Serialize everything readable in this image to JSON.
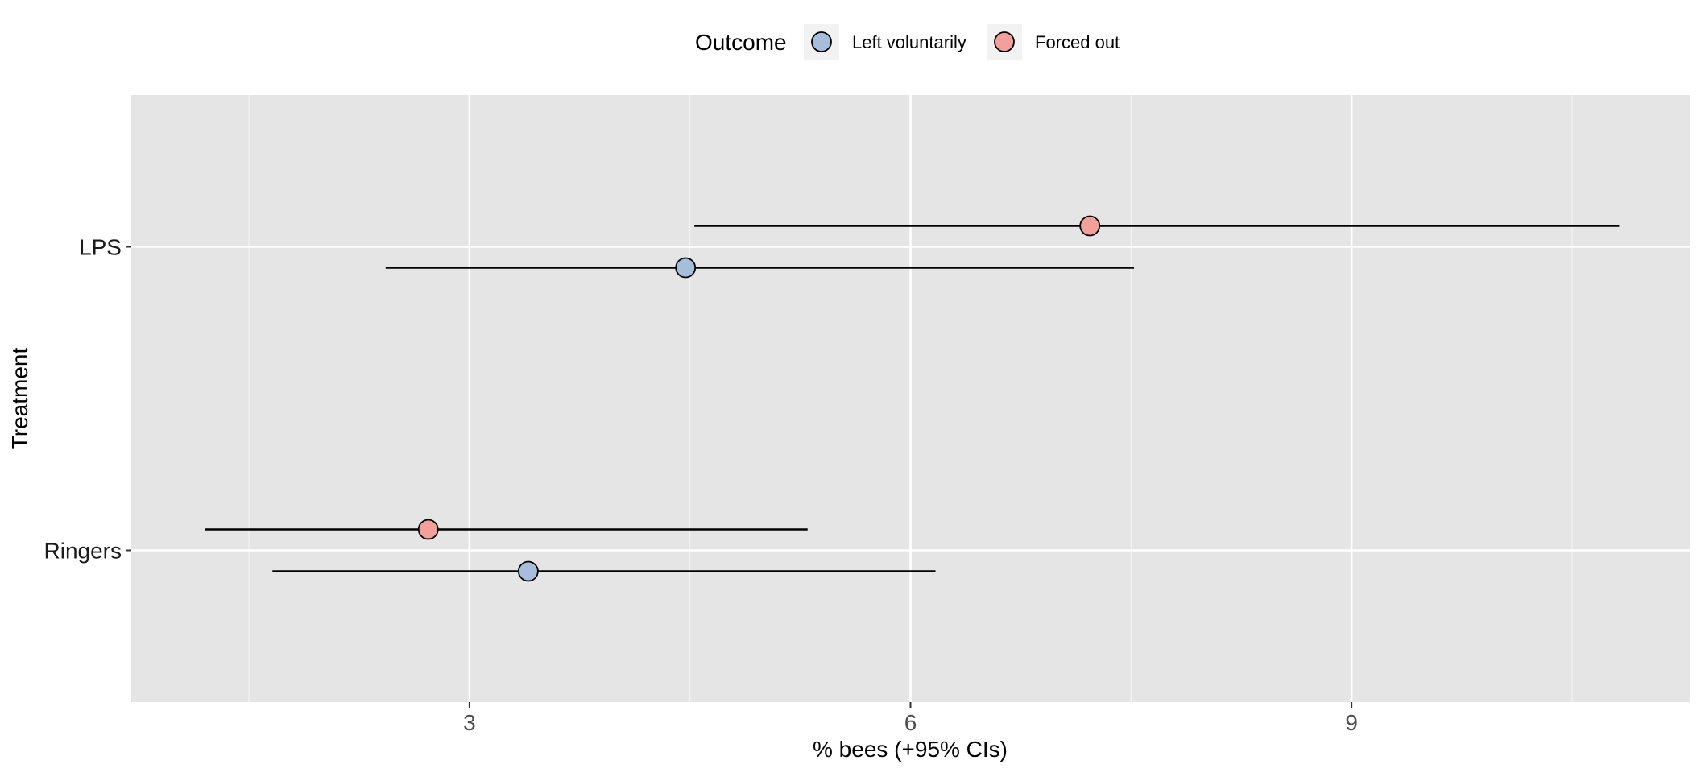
{
  "chart_data": {
    "type": "scatter",
    "orientation": "horizontal",
    "xlabel": "% bees (+95% CIs)",
    "ylabel": "Treatment",
    "categories": [
      "LPS",
      "Ringers"
    ],
    "xlim": [
      0.7,
      11.3
    ],
    "x_ticks": [
      3,
      6,
      9
    ],
    "x_tick_labels": [
      "3",
      "6",
      "9"
    ],
    "grid": true,
    "legend": {
      "title": "Outcome",
      "position": "top",
      "entries": [
        {
          "label": "Left voluntarily",
          "color": "#a6bddb"
        },
        {
          "label": "Forced out",
          "color": "#f4a09a"
        }
      ]
    },
    "series": [
      {
        "name": "Left voluntarily",
        "color": "#a6bddb",
        "points": [
          {
            "category": "LPS",
            "value": 4.47,
            "lower": 2.43,
            "upper": 7.52
          },
          {
            "category": "Ringers",
            "value": 3.4,
            "lower": 1.66,
            "upper": 6.17
          }
        ]
      },
      {
        "name": "Forced out",
        "color": "#f4a09a",
        "points": [
          {
            "category": "LPS",
            "value": 7.22,
            "lower": 4.53,
            "upper": 10.82
          },
          {
            "category": "Ringers",
            "value": 2.72,
            "lower": 1.2,
            "upper": 5.3
          }
        ]
      }
    ]
  }
}
